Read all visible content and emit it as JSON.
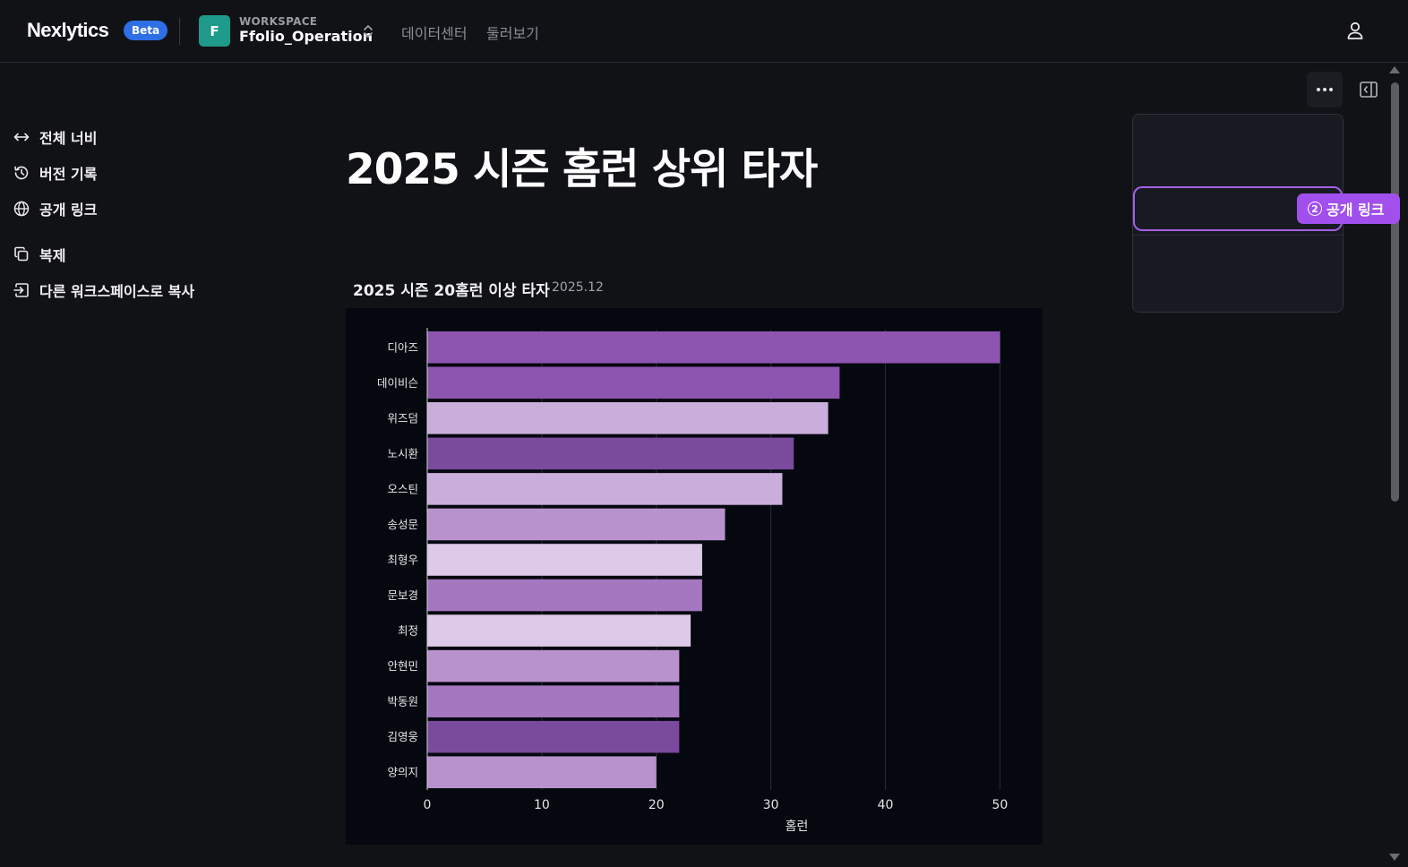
{
  "header": {
    "brand": "Nexlytics",
    "beta_label": "Beta",
    "workspace_avatar": "F",
    "workspace_caption": "WORKSPACE",
    "workspace_name": "Ffolio_Operation",
    "nav": [
      "데이터센터",
      "둘러보기"
    ]
  },
  "page": {
    "title": "2025 시즌 홈런 상위 타자"
  },
  "chart_header": {
    "title": "2025 시즌 20홈런 이상 타자",
    "date": "2025.12"
  },
  "menu": {
    "items": [
      {
        "label": "전체 너비",
        "icon": "arrows-horizontal-icon"
      },
      {
        "label": "버전 기록",
        "icon": "history-icon"
      },
      {
        "label": "공개 링크",
        "icon": "globe-icon"
      },
      {
        "label": "복제",
        "icon": "copy-icon"
      },
      {
        "label": "다른 워크스페이스로 복사",
        "icon": "move-workspace-icon"
      }
    ],
    "callout_number": "2",
    "callout_label": "공개 링크"
  },
  "colors": {
    "accent_purple": "#a150ee",
    "beta_blue": "#2f6fe6",
    "workspace_teal": "#1d9a8a"
  },
  "chart_data": {
    "type": "bar",
    "orientation": "horizontal",
    "categories": [
      "디아즈",
      "데이비슨",
      "위즈덤",
      "노시환",
      "오스틴",
      "송성문",
      "최형우",
      "문보경",
      "최정",
      "안현민",
      "박동원",
      "김영웅",
      "양의지"
    ],
    "values": [
      50,
      36,
      35,
      32,
      31,
      26,
      24,
      24,
      23,
      22,
      22,
      22,
      20
    ],
    "bar_colors": [
      "#8e55b0",
      "#8e55b0",
      "#c9aedb",
      "#7a4a9c",
      "#c9aedb",
      "#b892cd",
      "#ddc9e8",
      "#a477c0",
      "#ddc9e8",
      "#b892cd",
      "#a477c0",
      "#7a4a9c",
      "#b892cd"
    ],
    "xlabel": "홈런",
    "ylabel": "",
    "xlim": [
      0,
      52
    ],
    "xticks": [
      0,
      10,
      20,
      30,
      40,
      50
    ],
    "grid": true
  }
}
